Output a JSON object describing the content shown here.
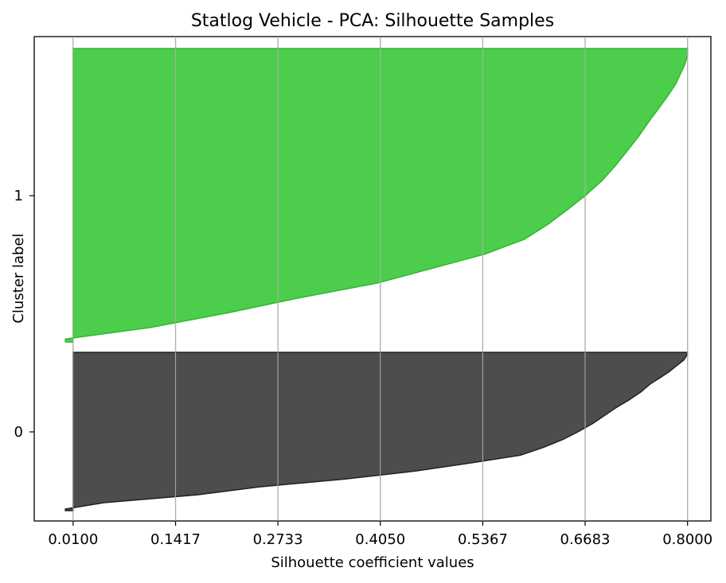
{
  "chart_data": {
    "type": "area",
    "title": "Statlog Vehicle - PCA: Silhouette Samples",
    "xlabel": "Silhouette coefficient values",
    "ylabel": "Cluster label",
    "xlim": [
      -0.04,
      0.83
    ],
    "x_ticks": [
      "0.0100",
      "0.1417",
      "0.2733",
      "0.4050",
      "0.5367",
      "0.6683",
      "0.8000"
    ],
    "x_tick_values": [
      0.01,
      0.1417,
      0.2733,
      0.405,
      0.5367,
      0.6683,
      0.8
    ],
    "grid": "vertical",
    "clusters": [
      {
        "label": "0",
        "color": "#4d4d4d",
        "edge_color": "#222222",
        "profile": [
          [
            0.0,
            0.8
          ],
          [
            0.02,
            0.799
          ],
          [
            0.05,
            0.795
          ],
          [
            0.08,
            0.787
          ],
          [
            0.12,
            0.777
          ],
          [
            0.16,
            0.765
          ],
          [
            0.2,
            0.752
          ],
          [
            0.25,
            0.74
          ],
          [
            0.3,
            0.725
          ],
          [
            0.35,
            0.708
          ],
          [
            0.4,
            0.693
          ],
          [
            0.45,
            0.678
          ],
          [
            0.5,
            0.66
          ],
          [
            0.55,
            0.64
          ],
          [
            0.6,
            0.615
          ],
          [
            0.65,
            0.585
          ],
          [
            0.7,
            0.52
          ],
          [
            0.75,
            0.45
          ],
          [
            0.8,
            0.36
          ],
          [
            0.85,
            0.25
          ],
          [
            0.9,
            0.17
          ],
          [
            0.95,
            0.05
          ],
          [
            0.99,
            0.0
          ],
          [
            1.0,
            0.0
          ]
        ]
      },
      {
        "label": "1",
        "color": "#4cce4c",
        "edge_color": "#2db82d",
        "profile": [
          [
            0.0,
            0.8
          ],
          [
            0.02,
            0.8
          ],
          [
            0.05,
            0.797
          ],
          [
            0.08,
            0.792
          ],
          [
            0.12,
            0.785
          ],
          [
            0.16,
            0.775
          ],
          [
            0.2,
            0.764
          ],
          [
            0.25,
            0.75
          ],
          [
            0.3,
            0.737
          ],
          [
            0.35,
            0.722
          ],
          [
            0.4,
            0.707
          ],
          [
            0.45,
            0.69
          ],
          [
            0.5,
            0.669
          ],
          [
            0.55,
            0.645
          ],
          [
            0.6,
            0.62
          ],
          [
            0.65,
            0.59
          ],
          [
            0.7,
            0.54
          ],
          [
            0.75,
            0.47
          ],
          [
            0.8,
            0.4
          ],
          [
            0.85,
            0.3
          ],
          [
            0.9,
            0.21
          ],
          [
            0.95,
            0.11
          ],
          [
            0.99,
            0.0
          ],
          [
            1.0,
            0.0
          ]
        ]
      }
    ]
  }
}
